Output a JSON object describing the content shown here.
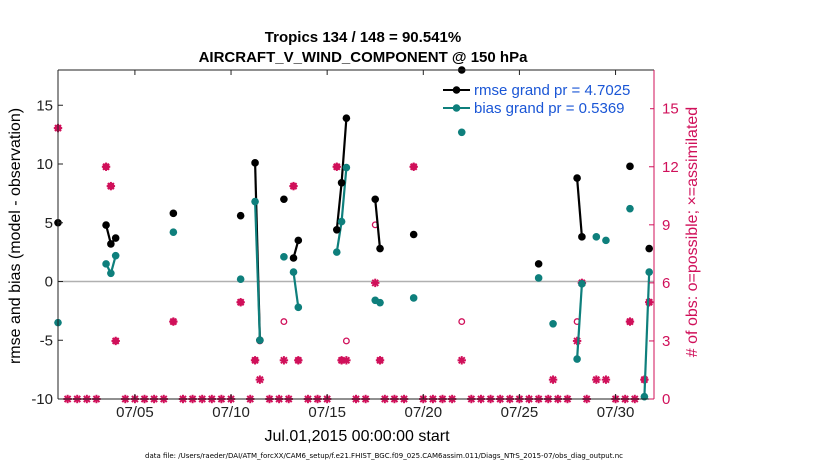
{
  "chart_data": {
    "type": "scatter",
    "title": "Tropics 134 / 148 = 90.541%",
    "subtitle": "AIRCRAFT_V_WIND_COMPONENT @ 150 hPa",
    "xlabel": "Jul.01,2015 00:00:00 start",
    "ylabel_left": "rmse and bias (model - observation)",
    "ylabel_right": "# of obs: o=possible; ×=assimilated",
    "xlim": [
      0.5,
      31.5
    ],
    "ylim_left": [
      -10,
      18
    ],
    "ylim_right": [
      0,
      17
    ],
    "x_ticks": [
      4.5,
      9.5,
      14.5,
      19.5,
      24.5,
      29.5
    ],
    "x_tick_labels": [
      "07/05",
      "07/10",
      "07/15",
      "07/20",
      "07/25",
      "07/30"
    ],
    "y_ticks_left": [
      -10,
      -5,
      0,
      5,
      10,
      15
    ],
    "y_tick_labels_left": [
      "-10",
      "-5",
      "0",
      "5",
      "10",
      "15"
    ],
    "y_ticks_right": [
      0,
      3,
      6,
      9,
      12,
      15
    ],
    "y_tick_labels_right": [
      "0",
      "3",
      "6",
      "9",
      "12",
      "15"
    ],
    "zero_line": 0,
    "colors": {
      "rmse": "#000000",
      "bias": "#0e7f7c",
      "obs": "#d0105a",
      "legend_text": "#1a56d6",
      "zero_line": "#b0b0b0"
    },
    "legend": [
      {
        "name": "rmse",
        "label": "rmse grand pr = 4.7025"
      },
      {
        "name": "bias",
        "label": "bias grand pr = 0.5369"
      }
    ],
    "series": [
      {
        "name": "rmse",
        "points": [
          [
            0.5,
            5.0
          ],
          [
            3.0,
            4.8
          ],
          [
            3.25,
            3.2
          ],
          [
            3.5,
            3.7
          ],
          [
            6.5,
            5.8
          ],
          [
            10.0,
            5.6
          ],
          [
            10.75,
            10.1
          ],
          [
            11.0,
            -5.0
          ],
          [
            12.25,
            7.0
          ],
          [
            12.75,
            2.0
          ],
          [
            13.0,
            3.5
          ],
          [
            15.0,
            4.4
          ],
          [
            15.25,
            8.4
          ],
          [
            15.5,
            13.9
          ],
          [
            17.0,
            7.0
          ],
          [
            17.25,
            2.8
          ],
          [
            19.0,
            4.0
          ],
          [
            21.5,
            18.0
          ],
          [
            25.5,
            1.5
          ],
          [
            27.5,
            8.8
          ],
          [
            27.75,
            3.8
          ],
          [
            30.25,
            9.8
          ],
          [
            31.25,
            2.8
          ]
        ],
        "segments": [
          [
            3.0,
            3.25,
            3.5
          ],
          [
            10.75,
            11.0
          ],
          [
            12.75,
            13.0
          ],
          [
            15.0,
            15.25,
            15.5
          ],
          [
            17.0,
            17.25
          ],
          [
            27.5,
            27.75
          ]
        ]
      },
      {
        "name": "bias",
        "points": [
          [
            0.5,
            -3.5
          ],
          [
            3.0,
            1.5
          ],
          [
            3.25,
            0.7
          ],
          [
            3.5,
            2.2
          ],
          [
            6.5,
            4.2
          ],
          [
            10.0,
            0.2
          ],
          [
            10.75,
            6.8
          ],
          [
            11.0,
            -5.0
          ],
          [
            12.25,
            2.1
          ],
          [
            12.75,
            0.8
          ],
          [
            13.0,
            -2.2
          ],
          [
            15.0,
            2.5
          ],
          [
            15.25,
            5.1
          ],
          [
            15.5,
            9.7
          ],
          [
            17.0,
            -1.6
          ],
          [
            17.25,
            -1.8
          ],
          [
            19.0,
            -1.4
          ],
          [
            21.5,
            12.7
          ],
          [
            25.5,
            0.3
          ],
          [
            26.25,
            -3.6
          ],
          [
            27.5,
            -6.6
          ],
          [
            27.75,
            -0.2
          ],
          [
            28.5,
            3.8
          ],
          [
            29.0,
            3.5
          ],
          [
            30.25,
            6.2
          ],
          [
            31.0,
            -9.8
          ],
          [
            31.25,
            0.8
          ]
        ],
        "segments": [
          [
            3.0,
            3.25,
            3.5
          ],
          [
            10.75,
            11.0
          ],
          [
            12.75,
            13.0
          ],
          [
            15.0,
            15.25,
            15.5
          ],
          [
            17.0,
            17.25
          ],
          [
            27.5,
            27.75
          ],
          [
            31.0,
            31.25
          ]
        ]
      },
      {
        "name": "obs_possible",
        "points": [
          [
            0.5,
            14
          ],
          [
            3.0,
            12
          ],
          [
            3.25,
            11
          ],
          [
            3.5,
            3
          ],
          [
            6.5,
            4
          ],
          [
            10.0,
            5
          ],
          [
            10.75,
            2
          ],
          [
            11.0,
            3
          ],
          [
            12.25,
            4
          ],
          [
            12.75,
            11
          ],
          [
            13.0,
            2
          ],
          [
            15.0,
            12
          ],
          [
            15.25,
            2
          ],
          [
            15.5,
            3
          ],
          [
            17.0,
            9
          ],
          [
            17.25,
            2
          ],
          [
            19.0,
            12
          ],
          [
            21.5,
            4
          ],
          [
            27.5,
            4
          ],
          [
            27.75,
            6
          ],
          [
            30.25,
            4
          ],
          [
            31.0,
            1
          ],
          [
            31.25,
            5
          ]
        ]
      },
      {
        "name": "obs_assimilated",
        "points": [
          [
            0.5,
            14
          ],
          [
            3.0,
            12
          ],
          [
            3.25,
            11
          ],
          [
            3.5,
            3
          ],
          [
            6.5,
            4
          ],
          [
            10.0,
            5
          ],
          [
            10.75,
            2
          ],
          [
            11.0,
            1
          ],
          [
            12.25,
            2
          ],
          [
            12.75,
            11
          ],
          [
            13.0,
            2
          ],
          [
            15.0,
            12
          ],
          [
            15.25,
            2
          ],
          [
            15.5,
            2
          ],
          [
            17.0,
            6
          ],
          [
            17.25,
            2
          ],
          [
            19.0,
            12
          ],
          [
            21.5,
            2
          ],
          [
            26.25,
            1
          ],
          [
            27.5,
            3
          ],
          [
            27.75,
            6
          ],
          [
            28.5,
            1
          ],
          [
            29.0,
            1
          ],
          [
            30.25,
            4
          ],
          [
            31.0,
            1
          ],
          [
            31.25,
            5
          ]
        ]
      }
    ],
    "footnote": "data file: /Users/raeder/DAI/ATM_forcXX/CAM6_setup/f.e21.FHIST_BGC.f09_025.CAM6assim.011/Diags_NTrS_2015-07/obs_diag_output.nc"
  }
}
